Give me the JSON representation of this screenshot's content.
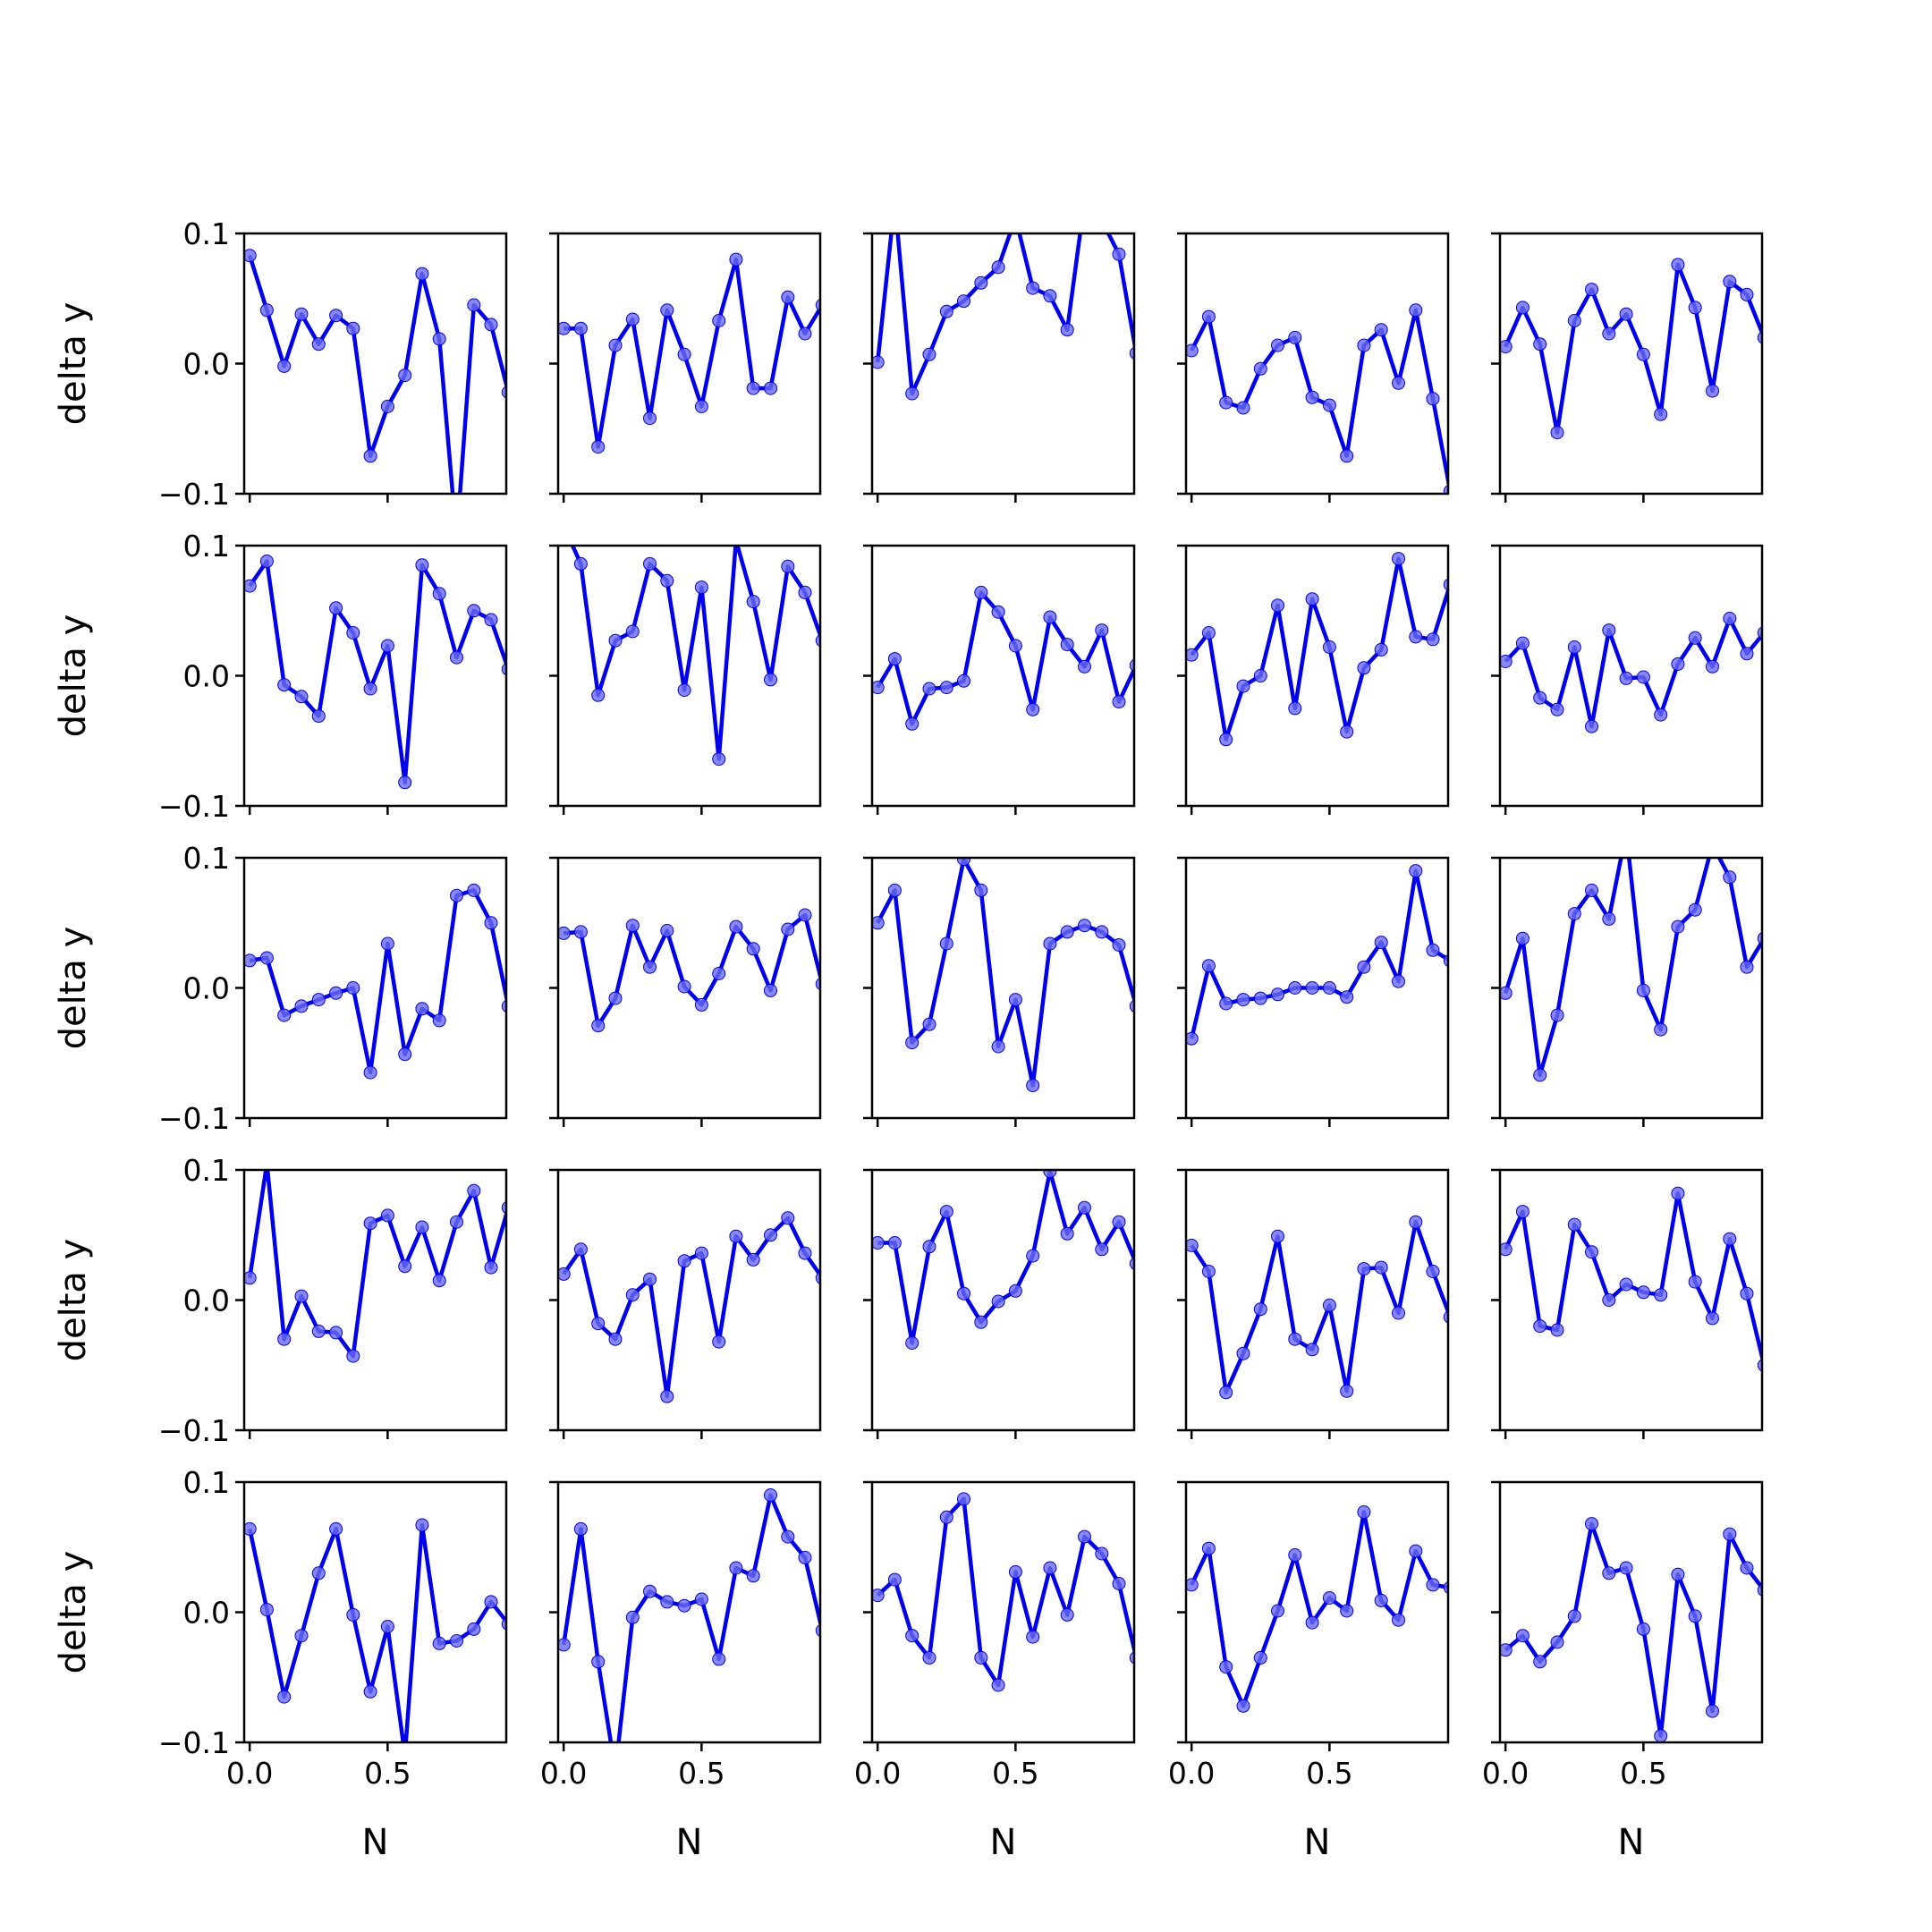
{
  "figure": {
    "xlabel": "N",
    "ylabel": "delta y",
    "line_color": "#0000ee",
    "marker_color": "#6a6af0"
  },
  "chart_data": {
    "type": "line",
    "layout": "5x5 small multiples",
    "xlabel": "N",
    "ylabel": "delta y",
    "xlim": [
      -0.02,
      0.93
    ],
    "ylim": [
      -0.1,
      0.1
    ],
    "x_ticks": [
      0.0,
      0.5
    ],
    "x_tick_labels": [
      "0.0",
      "0.5"
    ],
    "y_ticks": [
      -0.1,
      0.0,
      0.1
    ],
    "y_tick_labels": [
      "−0.1",
      "0.0",
      "0.1"
    ],
    "x": [
      0.0,
      0.0625,
      0.125,
      0.1875,
      0.25,
      0.3125,
      0.375,
      0.4375,
      0.5,
      0.5625,
      0.625,
      0.6875,
      0.75,
      0.8125,
      0.875,
      0.9375
    ],
    "panels": [
      {
        "values": [
          0.083,
          0.041,
          -0.002,
          0.038,
          0.015,
          0.037,
          0.027,
          -0.071,
          -0.033,
          -0.009,
          0.069,
          0.019,
          -0.135,
          0.045,
          0.03,
          -0.022
        ]
      },
      {
        "values": [
          0.027,
          0.027,
          -0.064,
          0.014,
          0.034,
          -0.042,
          0.041,
          0.007,
          -0.033,
          0.033,
          0.08,
          -0.019,
          -0.019,
          0.051,
          0.023,
          0.045
        ]
      },
      {
        "values": [
          0.001,
          0.125,
          -0.023,
          0.007,
          0.04,
          0.048,
          0.062,
          0.074,
          0.112,
          0.058,
          0.052,
          0.026,
          0.125,
          0.11,
          0.084,
          0.008
        ]
      },
      {
        "values": [
          0.01,
          0.036,
          -0.03,
          -0.034,
          -0.004,
          0.014,
          0.02,
          -0.026,
          -0.032,
          -0.071,
          0.014,
          0.026,
          -0.015,
          0.041,
          -0.027,
          -0.098
        ]
      },
      {
        "values": [
          0.013,
          0.043,
          0.015,
          -0.053,
          0.033,
          0.057,
          0.023,
          0.038,
          0.007,
          -0.039,
          0.076,
          0.043,
          -0.021,
          0.063,
          0.053,
          0.02
        ]
      },
      {
        "values": [
          0.069,
          0.088,
          -0.007,
          -0.016,
          -0.031,
          0.052,
          0.033,
          -0.01,
          0.023,
          -0.082,
          0.085,
          0.063,
          0.014,
          0.05,
          0.043,
          0.005
        ]
      },
      {
        "values": [
          0.115,
          0.086,
          -0.015,
          0.027,
          0.034,
          0.086,
          0.073,
          -0.011,
          0.068,
          -0.064,
          0.104,
          0.057,
          -0.003,
          0.084,
          0.064,
          0.027
        ]
      },
      {
        "values": [
          -0.009,
          0.013,
          -0.037,
          -0.01,
          -0.009,
          -0.004,
          0.064,
          0.049,
          0.023,
          -0.026,
          0.045,
          0.024,
          0.007,
          0.035,
          -0.02,
          0.008
        ]
      },
      {
        "values": [
          0.016,
          0.033,
          -0.049,
          -0.008,
          0.0,
          0.054,
          -0.025,
          0.059,
          0.022,
          -0.043,
          0.006,
          0.02,
          0.09,
          0.03,
          0.028,
          0.07
        ]
      },
      {
        "values": [
          0.011,
          0.025,
          -0.017,
          -0.026,
          0.022,
          -0.039,
          0.035,
          -0.002,
          -0.001,
          -0.03,
          0.009,
          0.029,
          0.007,
          0.044,
          0.017,
          0.033
        ]
      },
      {
        "values": [
          0.021,
          0.023,
          -0.021,
          -0.014,
          -0.009,
          -0.004,
          0.0,
          -0.065,
          0.034,
          -0.051,
          -0.016,
          -0.025,
          0.071,
          0.075,
          0.05,
          -0.014
        ]
      },
      {
        "values": [
          0.042,
          0.043,
          -0.029,
          -0.008,
          0.048,
          0.016,
          0.044,
          0.001,
          -0.013,
          0.011,
          0.047,
          0.03,
          -0.002,
          0.045,
          0.056,
          0.003
        ]
      },
      {
        "values": [
          0.05,
          0.075,
          -0.042,
          -0.028,
          0.034,
          0.099,
          0.075,
          -0.045,
          -0.009,
          -0.075,
          0.034,
          0.043,
          0.048,
          0.043,
          0.033,
          -0.014
        ]
      },
      {
        "values": [
          -0.039,
          0.017,
          -0.012,
          -0.009,
          -0.008,
          -0.005,
          0.0,
          0.0,
          0.0,
          -0.007,
          0.016,
          0.035,
          0.005,
          0.09,
          0.029,
          0.021
        ]
      },
      {
        "values": [
          -0.004,
          0.038,
          -0.067,
          -0.021,
          0.057,
          0.075,
          0.053,
          0.12,
          -0.002,
          -0.032,
          0.047,
          0.06,
          0.11,
          0.085,
          0.016,
          0.038
        ]
      },
      {
        "values": [
          0.017,
          0.105,
          -0.03,
          0.003,
          -0.024,
          -0.025,
          -0.043,
          0.059,
          0.065,
          0.026,
          0.056,
          0.015,
          0.06,
          0.084,
          0.025,
          0.071
        ]
      },
      {
        "values": [
          0.02,
          0.039,
          -0.018,
          -0.03,
          0.004,
          0.016,
          -0.074,
          0.03,
          0.036,
          -0.032,
          0.049,
          0.031,
          0.05,
          0.063,
          0.036,
          0.017
        ]
      },
      {
        "values": [
          0.044,
          0.044,
          -0.033,
          0.041,
          0.068,
          0.005,
          -0.017,
          -0.001,
          0.007,
          0.034,
          0.099,
          0.051,
          0.071,
          0.039,
          0.06,
          0.028
        ]
      },
      {
        "values": [
          0.042,
          0.022,
          -0.071,
          -0.041,
          -0.007,
          0.049,
          -0.03,
          -0.038,
          -0.004,
          -0.07,
          0.024,
          0.025,
          -0.01,
          0.06,
          0.022,
          -0.013
        ]
      },
      {
        "values": [
          0.039,
          0.068,
          -0.02,
          -0.023,
          0.058,
          0.037,
          0.0,
          0.012,
          0.006,
          0.004,
          0.082,
          0.014,
          -0.014,
          0.047,
          0.005,
          -0.05
        ]
      },
      {
        "values": [
          0.064,
          0.002,
          -0.065,
          -0.018,
          0.03,
          0.064,
          -0.002,
          -0.061,
          -0.011,
          -0.11,
          0.067,
          -0.024,
          -0.022,
          -0.013,
          0.008,
          -0.009
        ]
      },
      {
        "values": [
          -0.025,
          0.064,
          -0.038,
          -0.122,
          -0.004,
          0.016,
          0.008,
          0.005,
          0.01,
          -0.036,
          0.034,
          0.028,
          0.09,
          0.058,
          0.042,
          -0.014
        ]
      },
      {
        "values": [
          0.013,
          0.025,
          -0.018,
          -0.035,
          0.073,
          0.087,
          -0.035,
          -0.056,
          0.031,
          -0.019,
          0.034,
          -0.002,
          0.058,
          0.045,
          0.022,
          -0.035
        ]
      },
      {
        "values": [
          0.021,
          0.049,
          -0.042,
          -0.072,
          -0.035,
          0.001,
          0.044,
          -0.008,
          0.011,
          0.001,
          0.077,
          0.009,
          -0.006,
          0.047,
          0.021,
          0.019
        ]
      },
      {
        "values": [
          -0.029,
          -0.018,
          -0.038,
          -0.023,
          -0.003,
          0.068,
          0.03,
          0.034,
          -0.013,
          -0.095,
          0.029,
          -0.003,
          -0.076,
          0.06,
          0.034,
          0.017
        ]
      }
    ]
  }
}
